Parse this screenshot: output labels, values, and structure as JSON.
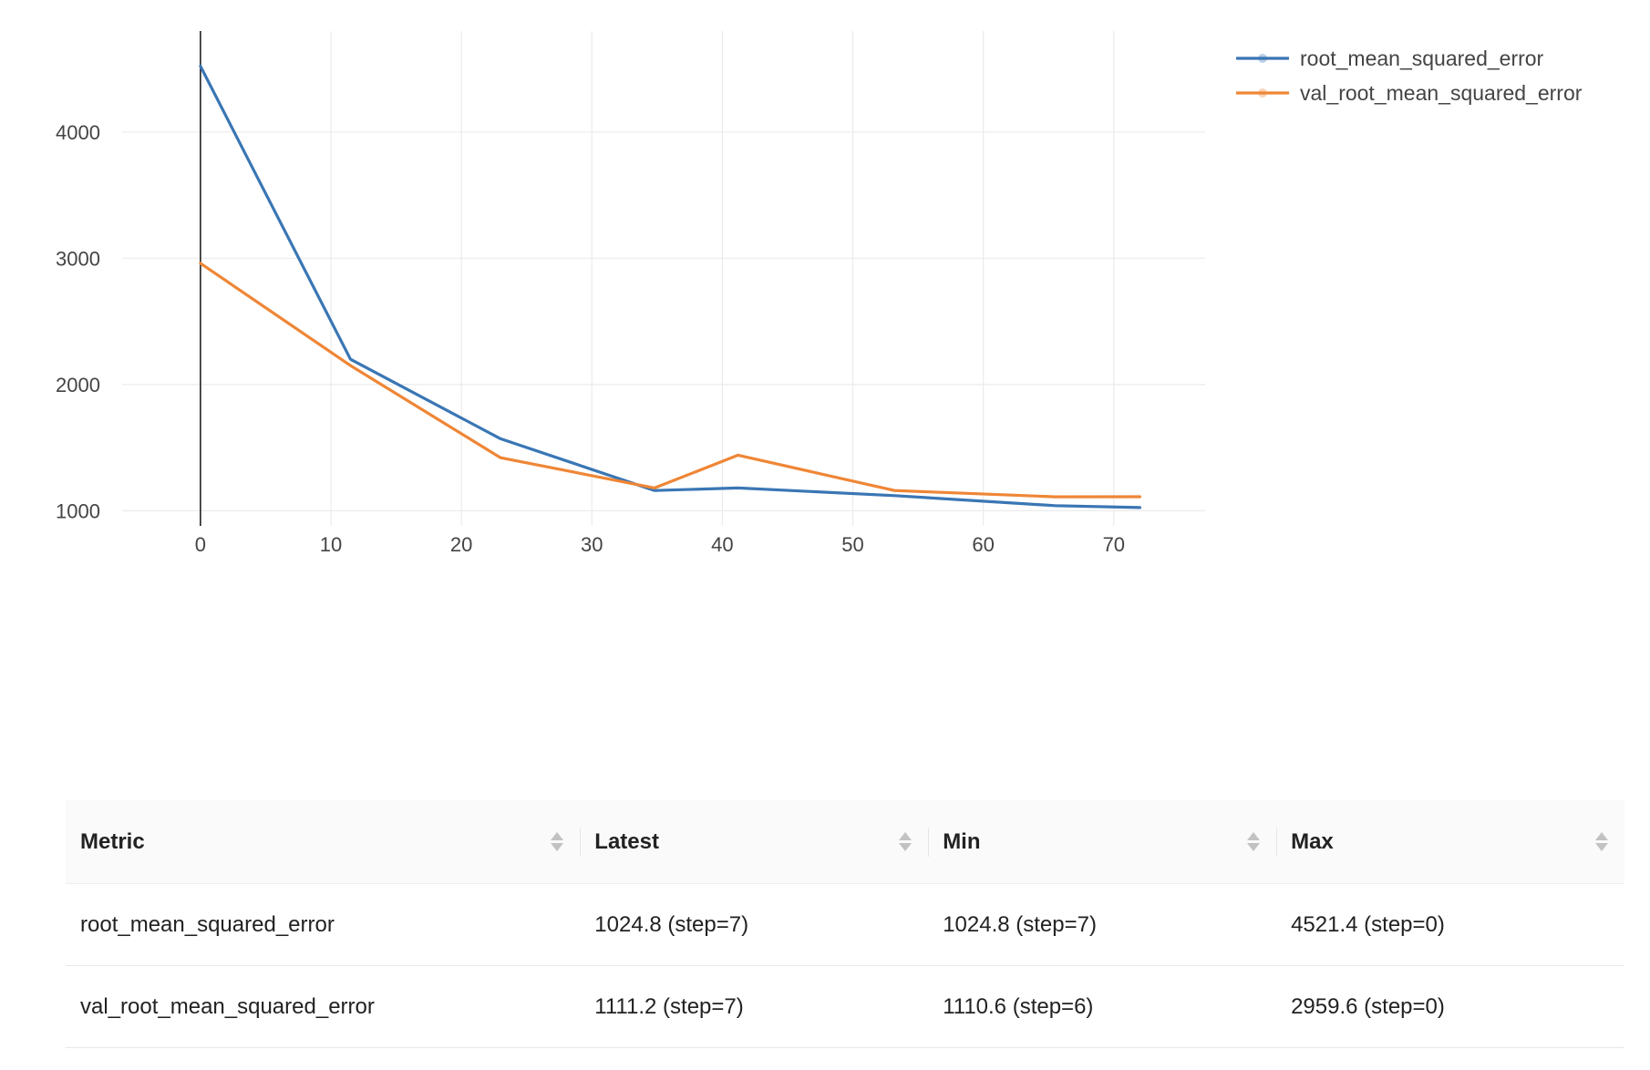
{
  "chart_data": {
    "type": "line",
    "title": "",
    "xlabel": "",
    "ylabel": "",
    "xlim": [
      -6,
      77
    ],
    "ylim": [
      880,
      4800
    ],
    "x_ticks": [
      0,
      10,
      20,
      30,
      40,
      50,
      60,
      70
    ],
    "y_ticks": [
      1000,
      2000,
      3000,
      4000
    ],
    "grid": true,
    "legend_position": "top-right",
    "series": [
      {
        "name": "root_mean_squared_error",
        "color": "#3a76b4",
        "x": [
          0,
          11.5,
          23,
          34.8,
          41.2,
          53.2,
          65.5,
          72
        ],
        "y": [
          4521.4,
          2200,
          1570,
          1160,
          1180,
          1120,
          1040,
          1024.8
        ]
      },
      {
        "name": "val_root_mean_squared_error",
        "color": "#ef8636",
        "x": [
          0,
          11.5,
          23,
          34.8,
          41.2,
          53.2,
          65.5,
          72
        ],
        "y": [
          2959.6,
          2150,
          1420,
          1180,
          1440,
          1160,
          1110.6,
          1111.2
        ]
      }
    ]
  },
  "table": {
    "headers": [
      "Metric",
      "Latest",
      "Min",
      "Max"
    ],
    "rows": [
      [
        "root_mean_squared_error",
        "1024.8 (step=7)",
        "1024.8 (step=7)",
        "4521.4 (step=0)"
      ],
      [
        "val_root_mean_squared_error",
        "1111.2 (step=7)",
        "1110.6 (step=6)",
        "2959.6 (step=0)"
      ]
    ]
  }
}
